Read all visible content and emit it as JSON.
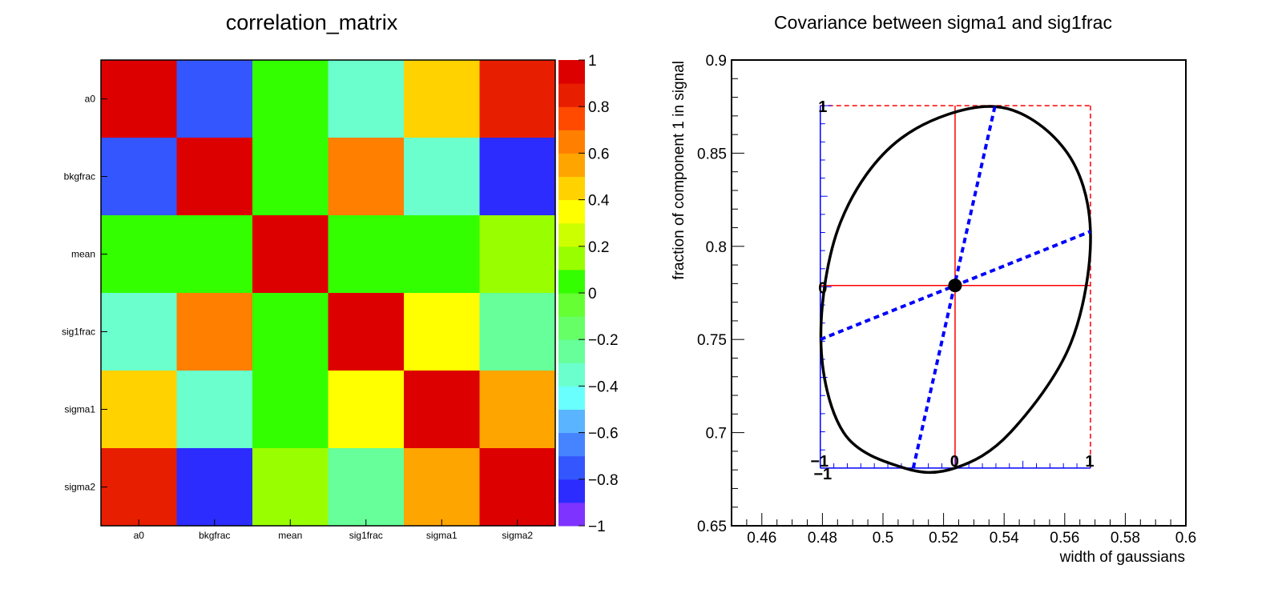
{
  "chart_data": [
    {
      "type": "heatmap",
      "title": "correlation_matrix",
      "row_labels": [
        "a0",
        "bkgfrac",
        "mean",
        "sig1frac",
        "sigma1",
        "sigma2"
      ],
      "col_labels": [
        "a0",
        "bkgfrac",
        "mean",
        "sig1frac",
        "sigma1",
        "sigma2"
      ],
      "values": [
        [
          1.0,
          -0.75,
          0.0,
          -0.35,
          0.45,
          0.85
        ],
        [
          -0.75,
          1.0,
          0.0,
          0.65,
          -0.35,
          -0.8
        ],
        [
          0.0,
          0.0,
          1.0,
          0.0,
          0.0,
          0.15
        ],
        [
          -0.35,
          0.65,
          0.0,
          1.0,
          0.3,
          -0.25
        ],
        [
          0.45,
          -0.35,
          0.0,
          0.3,
          1.0,
          0.55
        ],
        [
          0.85,
          -0.8,
          0.15,
          -0.25,
          0.55,
          1.0
        ]
      ],
      "zlim": [
        -1,
        1
      ],
      "colorbar_ticks": [
        {
          "value": 1,
          "label": "1"
        },
        {
          "value": 0.8,
          "label": "0.8"
        },
        {
          "value": 0.6,
          "label": "0.6"
        },
        {
          "value": 0.4,
          "label": "0.4"
        },
        {
          "value": 0.2,
          "label": "0.2"
        },
        {
          "value": 0,
          "label": "0"
        },
        {
          "value": -0.2,
          "label": "−0.2"
        },
        {
          "value": -0.4,
          "label": "−0.4"
        },
        {
          "value": -0.6,
          "label": "−0.6"
        },
        {
          "value": -0.8,
          "label": "−0.8"
        },
        {
          "value": -1,
          "label": "−1"
        }
      ],
      "palette": [
        "#7f33ff",
        "#2c2cff",
        "#3456ff",
        "#4684ff",
        "#5ab4ff",
        "#6affff",
        "#6affcc",
        "#66ff99",
        "#66ff66",
        "#66ff33",
        "#33ff00",
        "#99ff00",
        "#ccff00",
        "#ffff00",
        "#ffd200",
        "#ffa500",
        "#ff8000",
        "#ff4a00",
        "#e81e00",
        "#dd0000"
      ]
    },
    {
      "type": "scatter",
      "title": "Covariance between sigma1 and sig1frac",
      "xlabel": "width of gaussians",
      "ylabel": "fraction of component 1 in signal",
      "xlim": [
        0.45,
        0.6
      ],
      "ylim": [
        0.65,
        0.9
      ],
      "x_ticks": [
        "0.46",
        "0.48",
        "0.5",
        "0.52",
        "0.54",
        "0.56",
        "0.58",
        "0.6"
      ],
      "y_ticks": [
        "0.65",
        "0.7",
        "0.75",
        "0.8",
        "0.85",
        "0.9"
      ],
      "point": {
        "x": 0.5238,
        "y": 0.779
      },
      "ellipse": [
        {
          "x": 0.5238,
          "y": 0.681
        },
        {
          "x": 0.542,
          "y": 0.7
        },
        {
          "x": 0.562,
          "y": 0.748
        },
        {
          "x": 0.5685,
          "y": 0.808
        },
        {
          "x": 0.56,
          "y": 0.852
        },
        {
          "x": 0.537,
          "y": 0.875
        },
        {
          "x": 0.506,
          "y": 0.858
        },
        {
          "x": 0.486,
          "y": 0.813
        },
        {
          "x": 0.4795,
          "y": 0.75
        },
        {
          "x": 0.487,
          "y": 0.7
        },
        {
          "x": 0.507,
          "y": 0.681
        }
      ],
      "box": {
        "xmin": 0.4793,
        "xmax": 0.5685,
        "ymin": 0.681,
        "ymax": 0.8755
      },
      "major_axis": [
        {
          "x": 0.51,
          "y": 0.681
        },
        {
          "x": 0.537,
          "y": 0.8755
        }
      ],
      "minor_axis": [
        {
          "x": 0.4793,
          "y": 0.75
        },
        {
          "x": 0.5685,
          "y": 0.808
        }
      ],
      "box_axis_labels": {
        "bottom": [
          "−1",
          "0",
          "1"
        ],
        "left": [
          "−1",
          "0",
          "1"
        ]
      },
      "colors": {
        "ellipse": "#000000",
        "box": "#ff0000",
        "axes": "#0000ff",
        "point": "#000000"
      }
    }
  ]
}
